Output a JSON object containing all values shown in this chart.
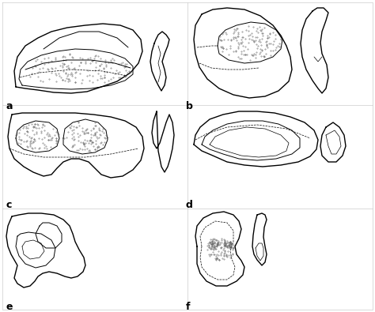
{
  "figsize": [
    4.74,
    3.95
  ],
  "dpi": 100,
  "background_color": "#ffffff",
  "line_color": "#000000",
  "dot_color": "#555555",
  "lw_outer": 1.0,
  "lw_inner": 0.7,
  "lw_thin": 0.5,
  "labels": [
    "a",
    "b",
    "c",
    "d",
    "e",
    "f"
  ],
  "border_color": "#aaaaaa"
}
